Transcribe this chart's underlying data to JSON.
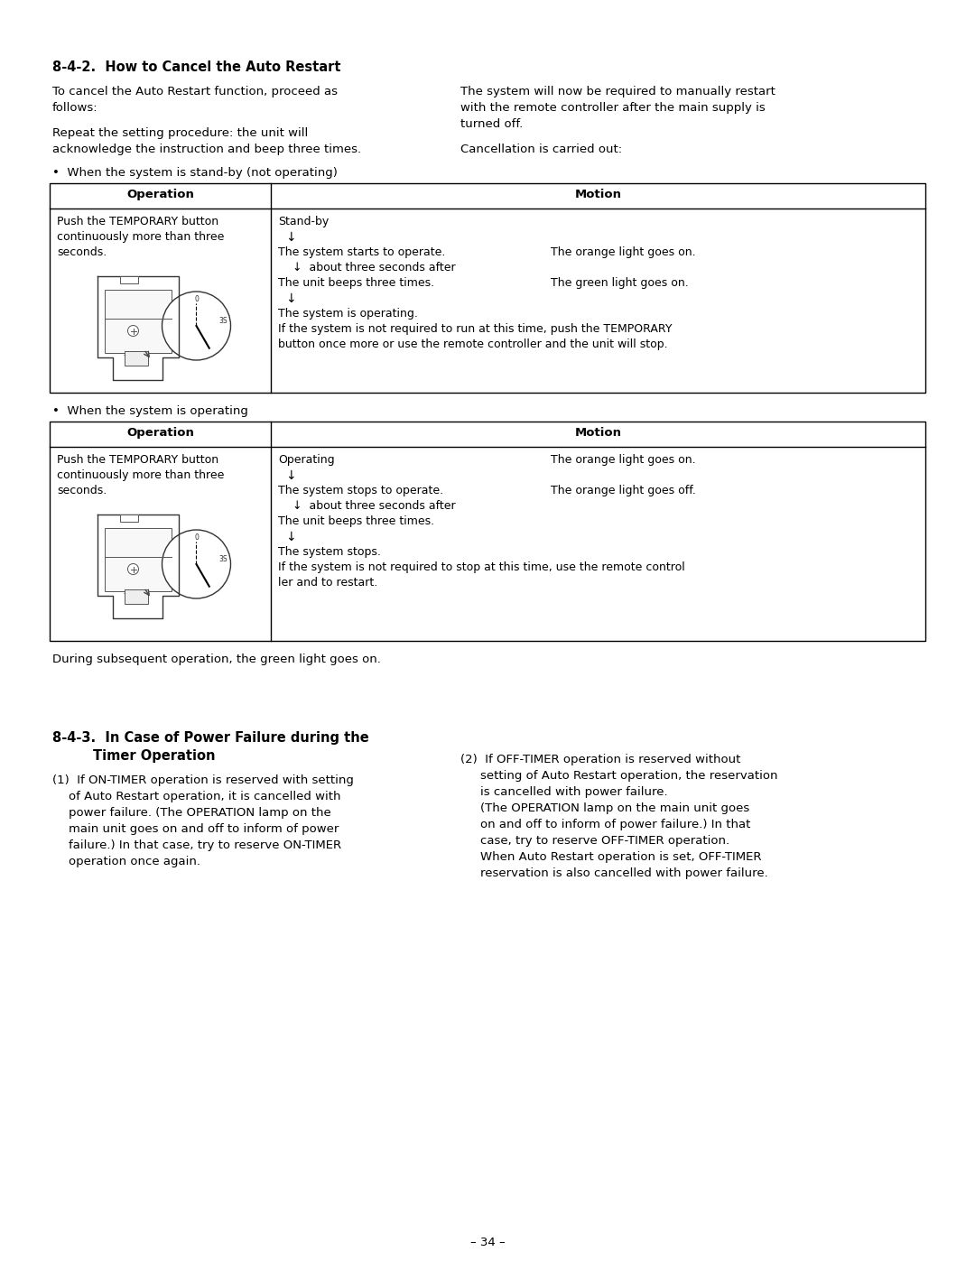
{
  "bg_color": "#ffffff",
  "section_842_title": "8-4-2.  How to Cancel the Auto Restart",
  "section_842_col1_lines": [
    "To cancel the Auto Restart function, proceed as",
    "follows:",
    "",
    "Repeat the setting procedure: the unit will",
    "acknowledge the instruction and beep three times."
  ],
  "section_842_col2_lines": [
    "The system will now be required to manually restart",
    "with the remote controller after the main supply is",
    "turned off.",
    "",
    "Cancellation is carried out:"
  ],
  "bullet1": "•  When the system is stand-by (not operating)",
  "bullet2": "•  When the system is operating",
  "table1_op_lines": [
    "Push the TEMPORARY button",
    "continuously more than three",
    "seconds."
  ],
  "table1_motion_col1": [
    [
      "Stand-by",
      false
    ],
    [
      "↓",
      true
    ],
    [
      "The system starts to operate.",
      false
    ],
    [
      "    ↓  about three seconds after",
      false
    ],
    [
      "The unit beeps three times.",
      false
    ],
    [
      "↓",
      true
    ],
    [
      "The system is operating.",
      false
    ],
    [
      "If the system is not required to run at this time, push the TEMPORARY",
      false
    ],
    [
      "button once more or use the remote controller and the unit will stop.",
      false
    ]
  ],
  "table1_motion_col2": [
    [
      "",
      false
    ],
    [
      "",
      false
    ],
    [
      "The orange light goes on.",
      false
    ],
    [
      "",
      false
    ],
    [
      "The green light goes on.",
      false
    ],
    [
      "",
      false
    ],
    [
      "",
      false
    ],
    [
      "",
      false
    ],
    [
      "",
      false
    ]
  ],
  "table2_op_lines": [
    "Push the TEMPORARY button",
    "continuously more than three",
    "seconds."
  ],
  "table2_motion_col1": [
    [
      "Operating",
      false
    ],
    [
      "↓",
      true
    ],
    [
      "The system stops to operate.",
      false
    ],
    [
      "    ↓  about three seconds after",
      false
    ],
    [
      "The unit beeps three times.",
      false
    ],
    [
      "↓",
      true
    ],
    [
      "The system stops.",
      false
    ],
    [
      "If the system is not required to stop at this time, use the remote control",
      false
    ],
    [
      "ler and to restart.",
      false
    ]
  ],
  "table2_motion_col2": [
    [
      "The orange light goes on.",
      false
    ],
    [
      "",
      false
    ],
    [
      "The orange light goes off.",
      false
    ],
    [
      "",
      false
    ],
    [
      "",
      false
    ],
    [
      "",
      false
    ],
    [
      "",
      false
    ],
    [
      "",
      false
    ],
    [
      "",
      false
    ]
  ],
  "after_tables_text": "During subsequent operation, the green light goes on.",
  "section_843_title_line1": "8-4-3.  In Case of Power Failure during the",
  "section_843_title_line2": "Timer Operation",
  "section_843_col1_paras": [
    "(1)  If ON-TIMER operation is reserved with setting",
    "of Auto Restart operation, it is cancelled with",
    "power failure. (The OPERATION lamp on the",
    "main unit goes on and off to inform of power",
    "failure.) In that case, try to reserve ON-TIMER",
    "operation once again."
  ],
  "section_843_col2_paras": [
    "(2)  If OFF-TIMER operation is reserved without",
    "setting of Auto Restart operation, the reservation",
    "is cancelled with power failure.",
    "(The OPERATION lamp on the main unit goes",
    "on and off to inform of power failure.) In that",
    "case, try to reserve OFF-TIMER operation.",
    "When Auto Restart operation is set, OFF-TIMER",
    "reservation is also cancelled with power failure."
  ],
  "footer_text": "– 34 –"
}
